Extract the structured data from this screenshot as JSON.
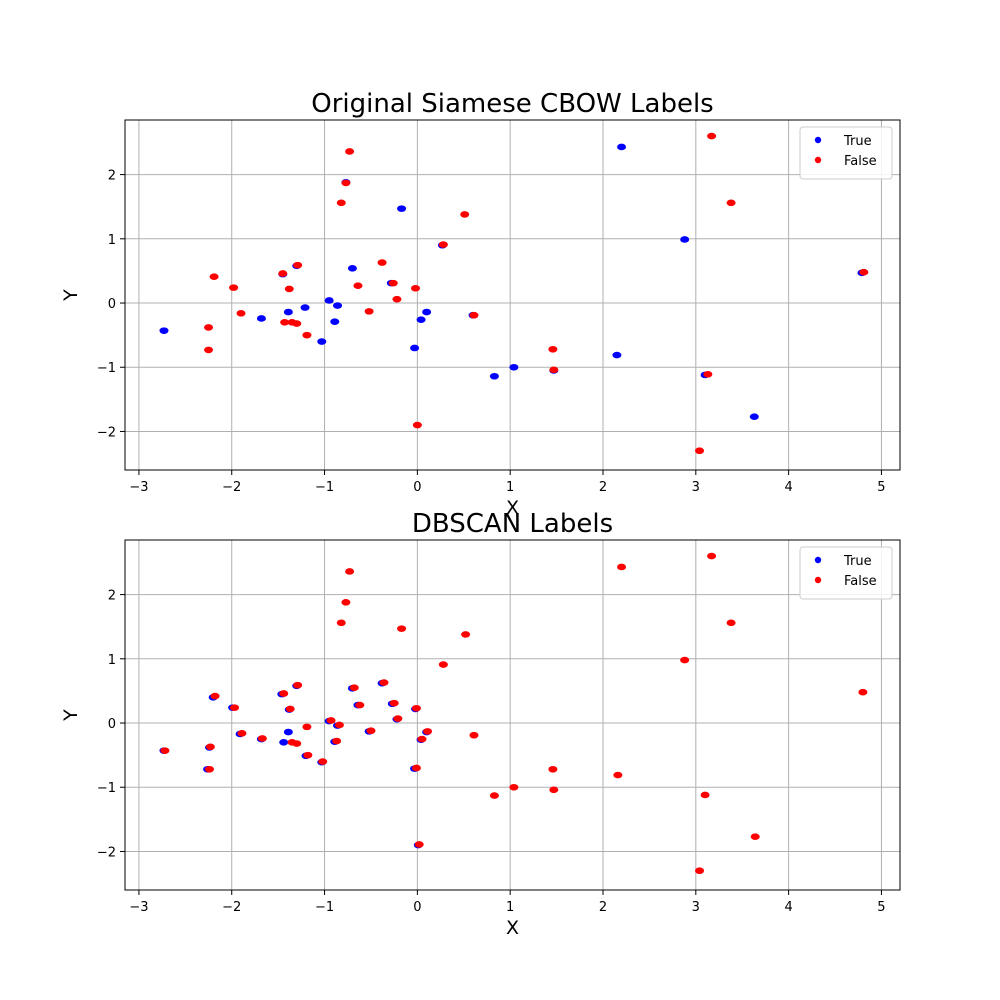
{
  "chart_data": [
    {
      "type": "scatter",
      "title": "Original Siamese CBOW Labels",
      "xlabel": "X",
      "ylabel": "Y",
      "xlim": [
        -3.15,
        5.2
      ],
      "ylim": [
        -2.6,
        2.85
      ],
      "xticks": [
        -3,
        -2,
        -1,
        0,
        1,
        2,
        3,
        4,
        5
      ],
      "yticks": [
        -2,
        -1,
        0,
        1,
        2
      ],
      "grid": true,
      "legend_position": "top-right",
      "series": [
        {
          "name": "True",
          "color": "#0000ff",
          "points": [
            [
              -2.73,
              -0.43
            ],
            [
              -1.68,
              -0.24
            ],
            [
              -1.45,
              0.45
            ],
            [
              -1.39,
              -0.14
            ],
            [
              -1.3,
              0.58
            ],
            [
              -1.21,
              -0.07
            ],
            [
              -1.03,
              -0.6
            ],
            [
              -0.95,
              0.04
            ],
            [
              -0.89,
              -0.29
            ],
            [
              -0.86,
              -0.04
            ],
            [
              -0.7,
              0.54
            ],
            [
              -0.77,
              1.88
            ],
            [
              -0.17,
              1.47
            ],
            [
              -0.28,
              0.31
            ],
            [
              -0.03,
              -0.7
            ],
            [
              0.04,
              -0.26
            ],
            [
              0.1,
              -0.14
            ],
            [
              0.83,
              -1.14
            ],
            [
              1.04,
              -1.0
            ],
            [
              2.15,
              -0.81
            ],
            [
              2.2,
              2.43
            ],
            [
              2.88,
              0.99
            ],
            [
              3.1,
              -1.12
            ],
            [
              3.63,
              -1.77
            ],
            [
              4.79,
              0.47
            ],
            [
              1.47,
              -1.05
            ],
            [
              0.6,
              -0.19
            ],
            [
              0.27,
              0.9
            ]
          ]
        },
        {
          "name": "False",
          "color": "#ff0000",
          "points": [
            [
              -2.25,
              -0.38
            ],
            [
              -2.25,
              -0.73
            ],
            [
              -2.19,
              0.41
            ],
            [
              -1.98,
              0.24
            ],
            [
              -1.9,
              -0.16
            ],
            [
              -1.45,
              0.46
            ],
            [
              -1.43,
              -0.3
            ],
            [
              -1.38,
              0.22
            ],
            [
              -1.35,
              -0.3
            ],
            [
              -1.3,
              -0.32
            ],
            [
              -1.29,
              0.59
            ],
            [
              -1.19,
              -0.5
            ],
            [
              -0.82,
              1.56
            ],
            [
              -0.73,
              2.36
            ],
            [
              -0.64,
              0.27
            ],
            [
              -0.52,
              -0.13
            ],
            [
              -0.38,
              0.63
            ],
            [
              -0.26,
              0.31
            ],
            [
              -0.22,
              0.06
            ],
            [
              -0.02,
              0.23
            ],
            [
              0.28,
              0.91
            ],
            [
              0.51,
              1.38
            ],
            [
              0.61,
              -0.19
            ],
            [
              1.46,
              -0.72
            ],
            [
              1.47,
              -1.04
            ],
            [
              3.04,
              -2.3
            ],
            [
              3.13,
              -1.11
            ],
            [
              3.17,
              2.6
            ],
            [
              3.38,
              1.56
            ],
            [
              4.81,
              0.48
            ],
            [
              0.0,
              -1.9
            ],
            [
              -0.77,
              1.87
            ]
          ]
        }
      ]
    },
    {
      "type": "scatter",
      "title": "DBSCAN Labels",
      "xlabel": "X",
      "ylabel": "Y",
      "xlim": [
        -3.15,
        5.2
      ],
      "ylim": [
        -2.6,
        2.85
      ],
      "xticks": [
        -3,
        -2,
        -1,
        0,
        1,
        2,
        3,
        4,
        5
      ],
      "yticks": [
        -2,
        -1,
        0,
        1,
        2
      ],
      "grid": true,
      "legend_position": "top-right",
      "series": [
        {
          "name": "True",
          "color": "#0000ff",
          "points": [
            [
              -2.73,
              -0.43
            ],
            [
              -2.26,
              -0.72
            ],
            [
              -2.24,
              -0.38
            ],
            [
              -2.2,
              0.4
            ],
            [
              -1.99,
              0.24
            ],
            [
              -1.91,
              -0.17
            ],
            [
              -1.68,
              -0.25
            ],
            [
              -1.46,
              0.45
            ],
            [
              -1.44,
              -0.3
            ],
            [
              -1.39,
              -0.14
            ],
            [
              -1.38,
              0.21
            ],
            [
              -1.3,
              0.58
            ],
            [
              -1.2,
              -0.51
            ],
            [
              -1.03,
              -0.61
            ],
            [
              -0.95,
              0.03
            ],
            [
              -0.89,
              -0.29
            ],
            [
              -0.86,
              -0.04
            ],
            [
              -0.7,
              0.54
            ],
            [
              -0.64,
              0.28
            ],
            [
              -0.52,
              -0.13
            ],
            [
              -0.38,
              0.62
            ],
            [
              -0.27,
              0.3
            ],
            [
              -0.22,
              0.06
            ],
            [
              -0.02,
              0.22
            ],
            [
              -0.03,
              -0.71
            ],
            [
              0.04,
              -0.26
            ],
            [
              0.1,
              -0.14
            ],
            [
              0.01,
              -1.9
            ]
          ]
        },
        {
          "name": "False",
          "color": "#ff0000",
          "points": [
            [
              -2.72,
              -0.43
            ],
            [
              -2.24,
              -0.72
            ],
            [
              -2.23,
              -0.37
            ],
            [
              -2.18,
              0.42
            ],
            [
              -1.97,
              0.24
            ],
            [
              -1.89,
              -0.16
            ],
            [
              -1.67,
              -0.24
            ],
            [
              -1.44,
              0.46
            ],
            [
              -1.35,
              -0.3
            ],
            [
              -1.3,
              -0.32
            ],
            [
              -1.37,
              0.22
            ],
            [
              -1.29,
              0.59
            ],
            [
              -1.18,
              -0.5
            ],
            [
              -1.19,
              -0.06
            ],
            [
              -1.02,
              -0.6
            ],
            [
              -0.93,
              0.04
            ],
            [
              -0.87,
              -0.28
            ],
            [
              -0.84,
              -0.03
            ],
            [
              -0.82,
              1.56
            ],
            [
              -0.77,
              1.88
            ],
            [
              -0.73,
              2.36
            ],
            [
              -0.68,
              0.55
            ],
            [
              -0.62,
              0.28
            ],
            [
              -0.5,
              -0.12
            ],
            [
              -0.36,
              0.63
            ],
            [
              -0.25,
              0.31
            ],
            [
              -0.21,
              0.07
            ],
            [
              -0.17,
              1.47
            ],
            [
              -0.01,
              0.23
            ],
            [
              -0.01,
              -0.7
            ],
            [
              0.05,
              -0.25
            ],
            [
              0.11,
              -0.13
            ],
            [
              0.02,
              -1.89
            ],
            [
              0.28,
              0.91
            ],
            [
              0.52,
              1.38
            ],
            [
              0.61,
              -0.19
            ],
            [
              0.83,
              -1.13
            ],
            [
              1.04,
              -1.0
            ],
            [
              1.46,
              -0.72
            ],
            [
              1.47,
              -1.04
            ],
            [
              2.16,
              -0.81
            ],
            [
              2.2,
              2.43
            ],
            [
              2.88,
              0.98
            ],
            [
              3.04,
              -2.3
            ],
            [
              3.1,
              -1.12
            ],
            [
              3.17,
              2.6
            ],
            [
              3.38,
              1.56
            ],
            [
              3.64,
              -1.77
            ],
            [
              4.8,
              0.48
            ]
          ]
        }
      ]
    }
  ]
}
